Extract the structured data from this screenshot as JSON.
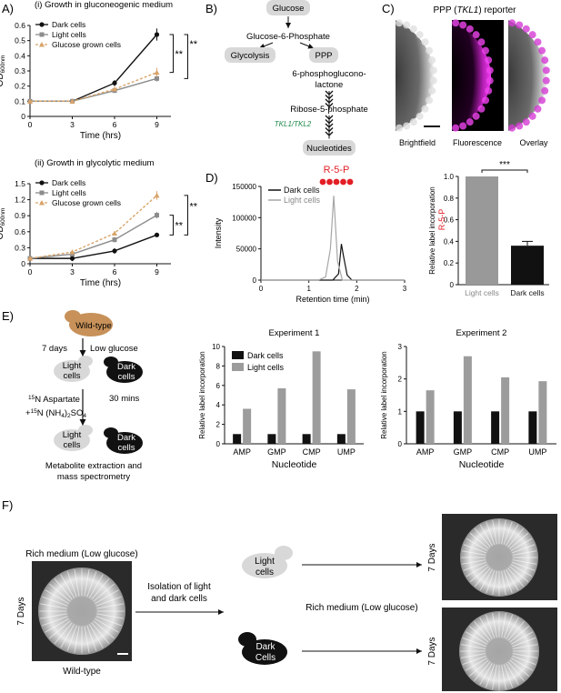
{
  "panel_letters": [
    "A)",
    "B)",
    "C)",
    "D)",
    "E)",
    "F)"
  ],
  "colors": {
    "dark": "#111111",
    "light": "#8c8c8c",
    "glucose": "#d9a46a",
    "red": "#e21f26",
    "green_italic": "#1f8a4c",
    "bubble": "#d8d8d8",
    "magenta": "#d12fd1",
    "wildtype": "#c79159"
  },
  "panel_a": {
    "chart_top": {
      "type": "line",
      "title": "(i) Growth in gluconeogenic medium",
      "ylabel": "OD600nm",
      "ylabel_main": "OD",
      "ylabel_sub": "600nm",
      "xlabel": "Time (hrs)",
      "xlim": [
        0,
        10
      ],
      "ylim": [
        0,
        0.6
      ],
      "xticks": [
        "0",
        "3",
        "6",
        "9"
      ],
      "yticks": [
        "0",
        "0.1",
        "0.2",
        "0.3",
        "0.4",
        "0.5",
        "0.6"
      ],
      "x": [
        0,
        3,
        6,
        9
      ],
      "series": [
        {
          "name": "Dark cells",
          "values": [
            0.1,
            0.1,
            0.22,
            0.54
          ],
          "err": [
            0.01,
            0.01,
            0.02,
            0.04
          ]
        },
        {
          "name": "Light cells",
          "values": [
            0.1,
            0.1,
            0.17,
            0.25
          ],
          "err": [
            0.01,
            0.01,
            0.01,
            0.02
          ]
        },
        {
          "name": "Glucose grown cells",
          "values": [
            0.1,
            0.1,
            0.18,
            0.29
          ],
          "err": [
            0.01,
            0.01,
            0.01,
            0.03
          ]
        }
      ],
      "significance": [
        "**",
        "**"
      ]
    },
    "chart_bottom": {
      "type": "line",
      "title": "(ii) Growth in glycolytic medium",
      "ylabel": "OD600nm",
      "ylabel_main": "OD",
      "ylabel_sub": "600nm",
      "xlabel": "Time (hrs)",
      "xlim": [
        0,
        10
      ],
      "ylim": [
        0,
        1.5
      ],
      "xticks": [
        "0",
        "3",
        "6",
        "9"
      ],
      "yticks": [
        "0",
        "0.3",
        "0.6",
        "0.9",
        "1.2",
        "1.5"
      ],
      "x": [
        0,
        3,
        6,
        9
      ],
      "series": [
        {
          "name": "Dark cells",
          "values": [
            0.1,
            0.1,
            0.24,
            0.54
          ],
          "err": [
            0.02,
            0.05,
            0.05,
            0.04
          ]
        },
        {
          "name": "Light cells",
          "values": [
            0.1,
            0.18,
            0.45,
            0.91
          ],
          "err": [
            0.02,
            0.04,
            0.05,
            0.06
          ]
        },
        {
          "name": "Glucose grown cells",
          "values": [
            0.1,
            0.22,
            0.57,
            1.28
          ],
          "err": [
            0.02,
            0.04,
            0.04,
            0.08
          ]
        }
      ],
      "significance": [
        "**",
        "**"
      ]
    }
  },
  "panel_b": {
    "glucose": "Glucose",
    "g6p": "Glucose-6-Phosphate",
    "glycolysis": "Glycolysis",
    "ppp": "PPP",
    "pgl1": "6-phosphoglucono-",
    "pgl2": "lactone",
    "r5p": "Ribose-5-phosphate",
    "enzymes": "TKL1/TKL2",
    "nucleotides": "Nucleotides"
  },
  "panel_c": {
    "title_pre": "PPP (",
    "title_gene": "TKL1",
    "title_post": ") reporter",
    "labels": [
      "Brightfield",
      "Fluorescence",
      "Overlay"
    ]
  },
  "chart_data": [
    {
      "type": "line",
      "panel": "D-left",
      "ylabel": "Intensity",
      "xlabel": "Retention time (min)",
      "xlim": [
        0,
        3
      ],
      "ylim": [
        0,
        150000
      ],
      "xticks": [
        "0",
        "1",
        "2",
        "3"
      ],
      "yticks": [
        "0",
        "50000",
        "100000",
        "150000"
      ],
      "annotation": "R-5-P",
      "series": [
        {
          "name": "Dark cells",
          "x": [
            1.5,
            1.62,
            1.68,
            1.72,
            1.8,
            1.9
          ],
          "values": [
            0,
            10000,
            58000,
            40000,
            8000,
            0
          ]
        },
        {
          "name": "Light cells",
          "x": [
            1.2,
            1.35,
            1.45,
            1.52,
            1.6,
            1.7
          ],
          "values": [
            0,
            5000,
            50000,
            135000,
            30000,
            0
          ]
        }
      ]
    },
    {
      "type": "bar",
      "panel": "D-right",
      "ylabel": "Relative label incorporation",
      "ylabel_red": "R-5-P",
      "categories": [
        "Light cells",
        "Dark cells"
      ],
      "values": [
        1.0,
        0.36
      ],
      "err": [
        0,
        0.04
      ],
      "ylim": [
        0,
        1.0
      ],
      "yticks": [
        "0",
        "0.2",
        "0.4",
        "0.6",
        "0.8",
        "1.0"
      ],
      "significance": "***"
    },
    {
      "type": "bar",
      "panel": "E-exp1",
      "title": "Experiment 1",
      "xlabel": "Nucleotide",
      "ylabel": "Relative label incorporation",
      "categories": [
        "AMP",
        "GMP",
        "CMP",
        "UMP"
      ],
      "ylim": [
        0,
        10
      ],
      "yticks": [
        "0",
        "2",
        "4",
        "6",
        "8",
        "10"
      ],
      "series": [
        {
          "name": "Dark cells",
          "values": [
            1,
            1,
            1,
            1
          ]
        },
        {
          "name": "Light cells",
          "values": [
            3.6,
            5.7,
            9.5,
            5.6
          ]
        }
      ]
    },
    {
      "type": "bar",
      "panel": "E-exp2",
      "title": "Experiment 2",
      "xlabel": "Nucleotide",
      "ylabel": "Relative label incorporation",
      "categories": [
        "AMP",
        "GMP",
        "CMP",
        "UMP"
      ],
      "ylim": [
        0,
        3
      ],
      "yticks": [
        "0",
        "1",
        "2",
        "3"
      ],
      "series": [
        {
          "name": "Dark cells",
          "values": [
            1,
            1,
            1,
            1
          ]
        },
        {
          "name": "Light cells",
          "values": [
            1.65,
            2.7,
            2.05,
            1.93
          ]
        }
      ]
    }
  ],
  "panel_e": {
    "wildtype": "Wild-type",
    "days": "7 days",
    "low_glucose": "Low glucose",
    "light_cells_1": "Light",
    "light_cells_2": "cells",
    "dark_cells_1": "Dark",
    "dark_cells_2": "cells",
    "aspartate_mass": "15",
    "aspartate": "N Aspartate",
    "nh4_pre": "+",
    "nh4_mass": "15",
    "nh4": "N (NH",
    "nh4_sub": "4",
    "nh4_mid": ")",
    "nh4_sub2": "2",
    "nh4_end": "SO",
    "nh4_sub3": "4",
    "mins": "30 mins",
    "final1": "Metabolite extraction and",
    "final2": "mass spectrometry"
  },
  "panel_f": {
    "rich_medium": "Rich medium (Low glucose)",
    "days": "7 Days",
    "wildtype": "Wild-type",
    "isolation1": "Isolation of light",
    "isolation2": "and dark cells",
    "light1": "Light",
    "light2": "cells",
    "dark1": "Dark",
    "dark2": "Cells",
    "rich_medium_mid": "Rich medium (Low glucose)",
    "days_top": "7 Days",
    "days_bottom": "7 Days"
  }
}
